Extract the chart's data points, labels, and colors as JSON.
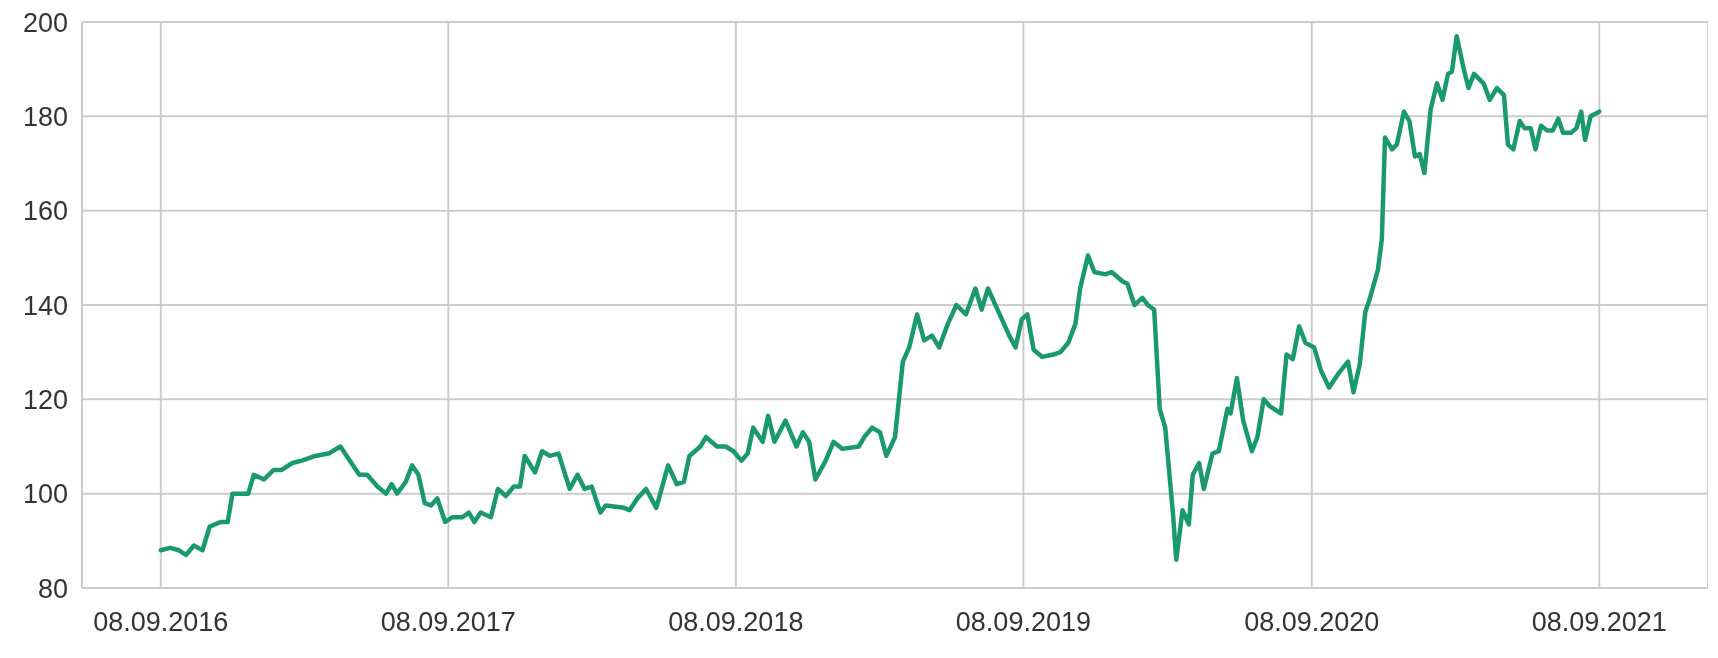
{
  "chart_data": {
    "type": "line",
    "x": [
      "2016-09-08",
      "2016-09-20",
      "2016-10-01",
      "2016-10-10",
      "2016-10-20",
      "2016-10-31",
      "2016-11-09",
      "2016-11-23",
      "2016-12-02",
      "2016-12-08",
      "2016-12-16",
      "2016-12-28",
      "2017-01-04",
      "2017-01-17",
      "2017-01-29",
      "2017-02-08",
      "2017-02-22",
      "2017-03-06",
      "2017-03-23",
      "2017-04-09",
      "2017-04-24",
      "2017-05-02",
      "2017-05-18",
      "2017-05-28",
      "2017-06-10",
      "2017-06-21",
      "2017-06-28",
      "2017-07-05",
      "2017-07-16",
      "2017-07-24",
      "2017-08-01",
      "2017-08-09",
      "2017-08-17",
      "2017-08-25",
      "2017-09-04",
      "2017-09-13",
      "2017-09-26",
      "2017-10-04",
      "2017-10-11",
      "2017-10-19",
      "2017-11-01",
      "2017-11-10",
      "2017-11-20",
      "2017-11-30",
      "2017-12-08",
      "2017-12-14",
      "2017-12-27",
      "2018-01-05",
      "2018-01-15",
      "2018-01-26",
      "2018-02-09",
      "2018-02-19",
      "2018-02-28",
      "2018-03-09",
      "2018-03-20",
      "2018-03-27",
      "2018-04-19",
      "2018-04-26",
      "2018-05-06",
      "2018-05-17",
      "2018-05-30",
      "2018-06-14",
      "2018-06-25",
      "2018-07-04",
      "2018-07-11",
      "2018-07-25",
      "2018-08-01",
      "2018-08-15",
      "2018-08-26",
      "2018-09-05",
      "2018-09-15",
      "2018-09-23",
      "2018-09-30",
      "2018-10-12",
      "2018-10-19",
      "2018-10-27",
      "2018-11-10",
      "2018-11-24",
      "2018-12-02",
      "2018-12-10",
      "2018-12-18",
      "2018-12-31",
      "2019-01-10",
      "2019-01-21",
      "2019-02-11",
      "2019-02-18",
      "2019-02-28",
      "2019-03-10",
      "2019-03-18",
      "2019-03-29",
      "2019-04-08",
      "2019-04-16",
      "2019-04-26",
      "2019-05-05",
      "2019-05-15",
      "2019-05-24",
      "2019-06-04",
      "2019-06-15",
      "2019-06-27",
      "2019-07-09",
      "2019-07-17",
      "2019-07-25",
      "2019-08-21",
      "2019-08-29",
      "2019-09-06",
      "2019-09-13",
      "2019-09-21",
      "2019-10-02",
      "2019-10-16",
      "2019-10-25",
      "2019-11-04",
      "2019-11-13",
      "2019-11-19",
      "2019-11-29",
      "2019-12-07",
      "2019-12-21",
      "2019-12-29",
      "2020-01-12",
      "2020-01-18",
      "2020-01-27",
      "2020-02-06",
      "2020-02-13",
      "2020-02-21",
      "2020-02-28",
      "2020-03-06",
      "2020-03-16",
      "2020-03-20",
      "2020-03-28",
      "2020-04-05",
      "2020-04-10",
      "2020-04-18",
      "2020-04-24",
      "2020-05-05",
      "2020-05-13",
      "2020-05-24",
      "2020-05-28",
      "2020-06-05",
      "2020-06-13",
      "2020-06-24",
      "2020-07-01",
      "2020-07-09",
      "2020-07-17",
      "2020-07-31",
      "2020-08-07",
      "2020-08-15",
      "2020-08-23",
      "2020-08-31",
      "2020-09-11",
      "2020-09-20",
      "2020-09-30",
      "2020-10-12",
      "2020-10-24",
      "2020-10-31",
      "2020-11-08",
      "2020-11-15",
      "2020-11-21",
      "2020-12-01",
      "2020-12-06",
      "2020-12-10",
      "2020-12-19",
      "2020-12-25",
      "2021-01-03",
      "2021-01-10",
      "2021-01-17",
      "2021-01-23",
      "2021-01-29",
      "2021-02-06",
      "2021-02-14",
      "2021-02-21",
      "2021-02-28",
      "2021-03-05",
      "2021-03-11",
      "2021-03-20",
      "2021-03-26",
      "2021-04-02",
      "2021-04-14",
      "2021-04-22",
      "2021-05-01",
      "2021-05-10",
      "2021-05-15",
      "2021-05-22",
      "2021-05-30",
      "2021-06-05",
      "2021-06-13",
      "2021-06-19",
      "2021-06-26",
      "2021-07-04",
      "2021-07-11",
      "2021-07-18",
      "2021-07-24",
      "2021-08-03",
      "2021-08-10",
      "2021-08-16",
      "2021-08-21",
      "2021-08-28",
      "2021-09-08"
    ],
    "series": [
      {
        "color": "#1a9a6c",
        "values": [
          88,
          88.5,
          88,
          87,
          89,
          88,
          93,
          94,
          94,
          100,
          100,
          100,
          104,
          103,
          105,
          105,
          106.5,
          107,
          108,
          108.5,
          110,
          108,
          104,
          104,
          101.5,
          100,
          102,
          100,
          102.5,
          106,
          104,
          98,
          97.5,
          99,
          94,
          95,
          95,
          96,
          94,
          96,
          95,
          101,
          99.5,
          101.5,
          101.5,
          108,
          104.5,
          109,
          108,
          108.5,
          101,
          104,
          101,
          101.5,
          96,
          97.5,
          97,
          96.5,
          99,
          101,
          97,
          106,
          102,
          102.5,
          108,
          110,
          112,
          110,
          110,
          109,
          107,
          108.5,
          114,
          111,
          116.5,
          111,
          115.5,
          110,
          113,
          111,
          103,
          107,
          111,
          109.5,
          110,
          112,
          114,
          113,
          108,
          112,
          128,
          131,
          138,
          132.5,
          133.5,
          131,
          136,
          140,
          138,
          143.5,
          139,
          143.5,
          133.5,
          131,
          137,
          138,
          130.5,
          129,
          129.5,
          130,
          132,
          136,
          143.5,
          150.5,
          147,
          146.5,
          147,
          145,
          144.5,
          140,
          141.5,
          140,
          139,
          118,
          114,
          95.5,
          86,
          96.5,
          93.5,
          104,
          106.5,
          101,
          108.5,
          109,
          118,
          117,
          124.5,
          115.5,
          109,
          112,
          120,
          118.5,
          117,
          129.5,
          128.5,
          135.5,
          132,
          131,
          126,
          122.5,
          125.5,
          128,
          121.5,
          127.5,
          138.5,
          141.5,
          147.5,
          154,
          175.5,
          173,
          174,
          181,
          179,
          171.5,
          172,
          168,
          181.5,
          187,
          183.5,
          189,
          189.5,
          197,
          190,
          186,
          189,
          187,
          183.5,
          186,
          184.5,
          174,
          173,
          179,
          177.5,
          177.5,
          173,
          178,
          177,
          177,
          179.5,
          176.5,
          176.5,
          177.5,
          181,
          175,
          180,
          181
        ]
      }
    ],
    "xlim": [
      "2016-05-31",
      "2022-01-24"
    ],
    "xticks": [
      {
        "value": "2016-09-08",
        "label": "08.09.2016"
      },
      {
        "value": "2017-09-08",
        "label": "08.09.2017"
      },
      {
        "value": "2018-09-08",
        "label": "08.09.2018"
      },
      {
        "value": "2019-09-08",
        "label": "08.09.2019"
      },
      {
        "value": "2020-09-08",
        "label": "08.09.2020"
      },
      {
        "value": "2021-09-08",
        "label": "08.09.2021"
      }
    ],
    "ylim": [
      80,
      200
    ],
    "yticks": [
      80,
      100,
      120,
      140,
      160,
      180,
      200
    ],
    "grid": true,
    "legend": false,
    "marker": "none",
    "line_style": "solid"
  }
}
